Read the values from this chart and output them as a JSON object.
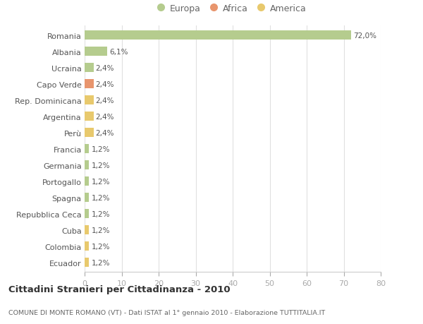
{
  "countries": [
    "Romania",
    "Albania",
    "Ucraina",
    "Capo Verde",
    "Rep. Dominicana",
    "Argentina",
    "Perù",
    "Francia",
    "Germania",
    "Portogallo",
    "Spagna",
    "Repubblica Ceca",
    "Cuba",
    "Colombia",
    "Ecuador"
  ],
  "values": [
    72.0,
    6.1,
    2.4,
    2.4,
    2.4,
    2.4,
    2.4,
    1.2,
    1.2,
    1.2,
    1.2,
    1.2,
    1.2,
    1.2,
    1.2
  ],
  "labels": [
    "72,0%",
    "6,1%",
    "2,4%",
    "2,4%",
    "2,4%",
    "2,4%",
    "2,4%",
    "1,2%",
    "1,2%",
    "1,2%",
    "1,2%",
    "1,2%",
    "1,2%",
    "1,2%",
    "1,2%"
  ],
  "colors": [
    "#b5cc8e",
    "#b5cc8e",
    "#b5cc8e",
    "#e8956d",
    "#e8c96d",
    "#e8c96d",
    "#e8c96d",
    "#b5cc8e",
    "#b5cc8e",
    "#b5cc8e",
    "#b5cc8e",
    "#b5cc8e",
    "#e8c96d",
    "#e8c96d",
    "#e8c96d"
  ],
  "legend_labels": [
    "Europa",
    "Africa",
    "America"
  ],
  "legend_colors": [
    "#b5cc8e",
    "#e8956d",
    "#e8c96d"
  ],
  "title": "Cittadini Stranieri per Cittadinanza - 2010",
  "subtitle": "COMUNE DI MONTE ROMANO (VT) - Dati ISTAT al 1° gennaio 2010 - Elaborazione TUTTITALIA.IT",
  "xlim": [
    0,
    80
  ],
  "xticks": [
    0,
    10,
    20,
    30,
    40,
    50,
    60,
    70,
    80
  ],
  "bg_color": "#ffffff",
  "grid_color": "#e0e0e0",
  "bar_height": 0.55
}
